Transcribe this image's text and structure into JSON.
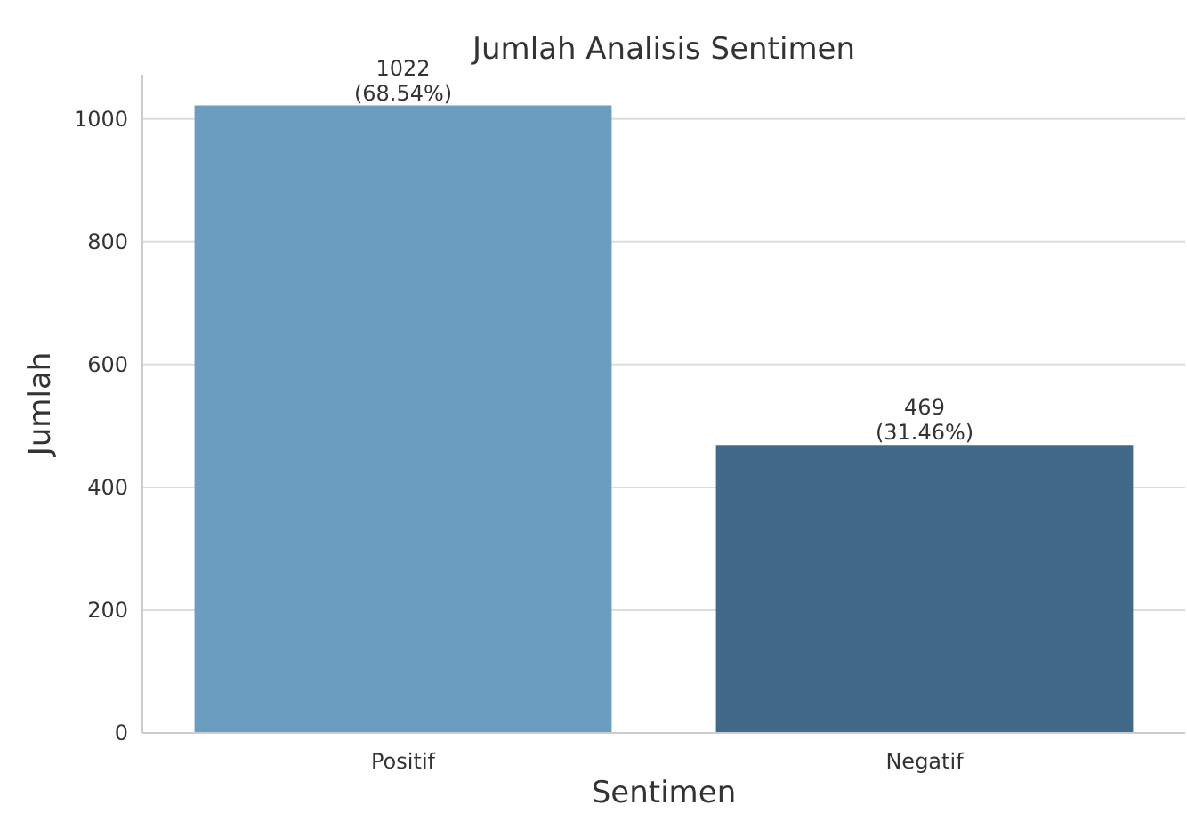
{
  "chart_data": {
    "type": "bar",
    "title": "Jumlah Analisis Sentimen",
    "xlabel": "Sentimen",
    "ylabel": "Jumlah",
    "categories": [
      "Positif",
      "Negatif"
    ],
    "values": [
      1022,
      469
    ],
    "colors": [
      "#6a9ec0",
      "#416a88"
    ],
    "value_labels": [
      "1022\n(68.54%)",
      "469\n(31.46%)"
    ],
    "ylim": [
      0,
      1072
    ],
    "yticks": [
      0,
      200,
      400,
      600,
      800,
      1000
    ],
    "grid": "y"
  }
}
